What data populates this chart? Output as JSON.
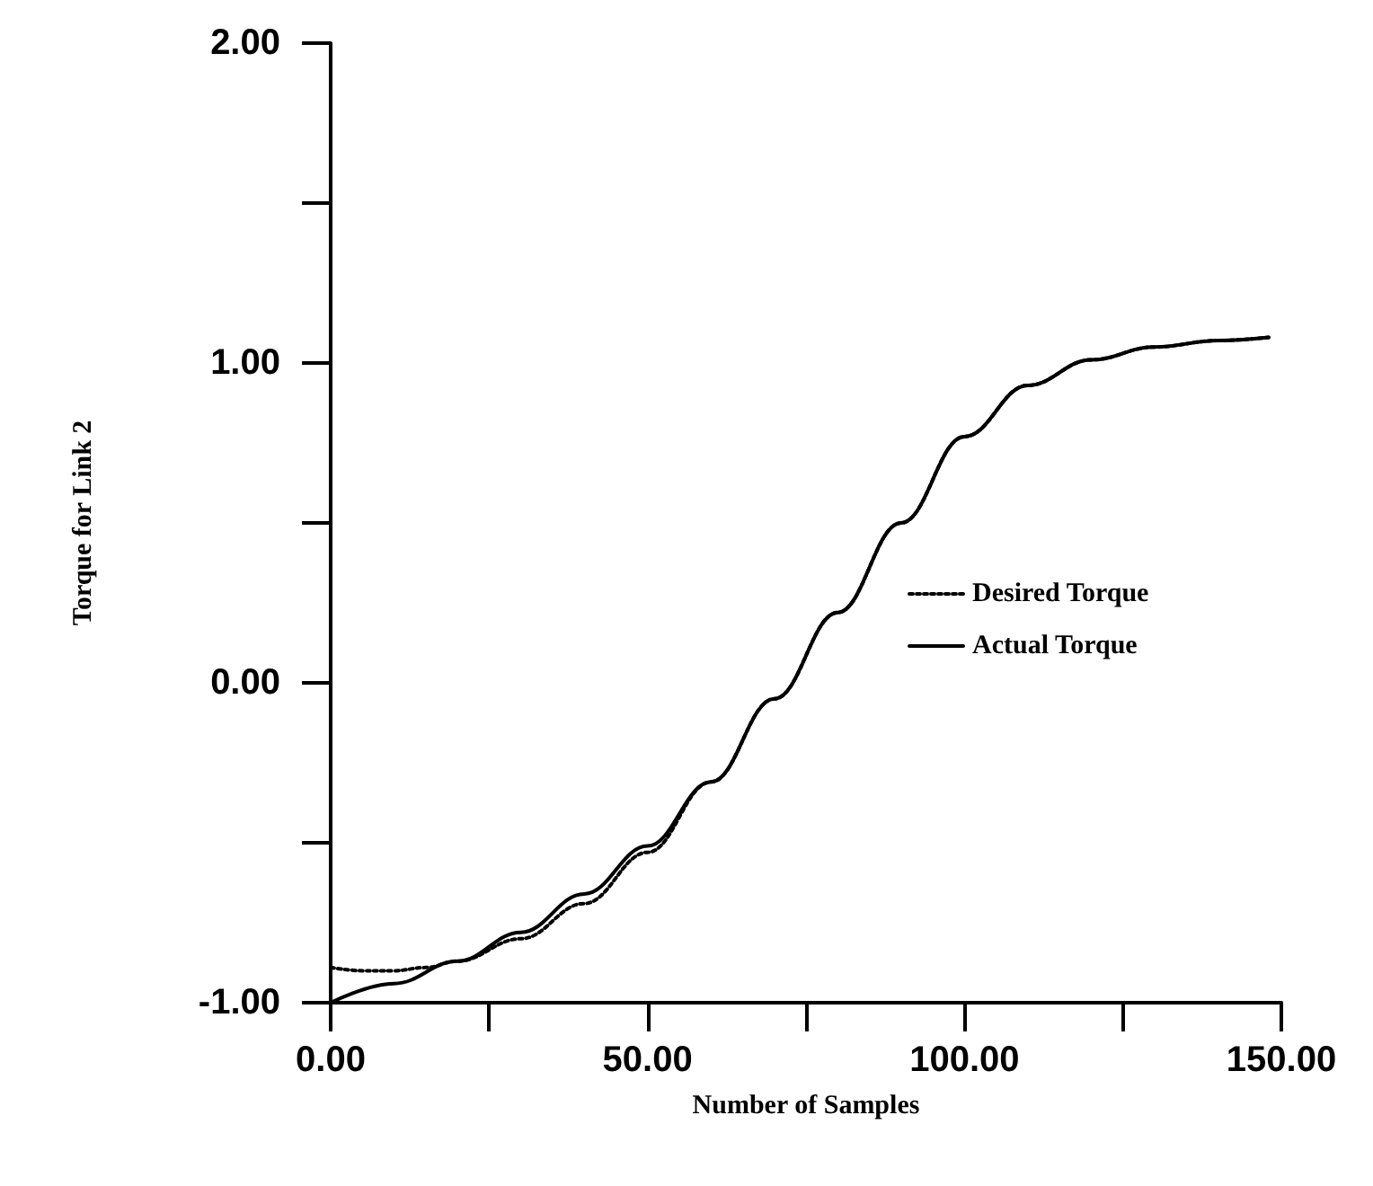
{
  "chart_data": {
    "type": "line",
    "xlabel": "Number of Samples",
    "ylabel": "Torque for Link 2",
    "xlim": [
      0,
      150
    ],
    "xticks": [
      {
        "value": 0,
        "label": "0.00"
      },
      {
        "value": 25,
        "label": null
      },
      {
        "value": 50,
        "label": "50.00"
      },
      {
        "value": 75,
        "label": null
      },
      {
        "value": 100,
        "label": "100.00"
      },
      {
        "value": 125,
        "label": null
      },
      {
        "value": 150,
        "label": "150.00"
      }
    ],
    "ylim": [
      -1,
      2
    ],
    "yticks": [
      {
        "value": -1,
        "label": "-1.00"
      },
      {
        "value": -0.5,
        "label": null
      },
      {
        "value": 0,
        "label": "0.00"
      },
      {
        "value": 0.5,
        "label": null
      },
      {
        "value": 1,
        "label": "1.00"
      },
      {
        "value": 1.5,
        "label": null
      },
      {
        "value": 2,
        "label": "2.00"
      }
    ],
    "grid": false,
    "legend": "center",
    "marker": "none",
    "series": [
      {
        "name": "Desired Torque",
        "color": "#000000",
        "line_style": "dotted",
        "x": [
          0,
          5,
          10,
          15,
          20,
          30,
          40,
          50,
          60,
          70,
          80,
          90,
          100,
          110,
          120,
          130,
          140,
          148
        ],
        "values": [
          -0.89,
          -0.9,
          -0.9,
          -0.89,
          -0.87,
          -0.8,
          -0.69,
          -0.53,
          -0.31,
          -0.05,
          0.22,
          0.5,
          0.77,
          0.93,
          1.01,
          1.05,
          1.07,
          1.08
        ]
      },
      {
        "name": "Actual Torque",
        "color": "#000000",
        "line_style": "solid",
        "x": [
          0,
          10,
          20,
          30,
          40,
          50,
          60,
          70,
          80,
          90,
          100,
          110,
          120,
          130,
          140,
          148
        ],
        "values": [
          -1.0,
          -0.94,
          -0.87,
          -0.78,
          -0.66,
          -0.51,
          -0.31,
          -0.05,
          0.22,
          0.5,
          0.77,
          0.93,
          1.01,
          1.05,
          1.07,
          1.08
        ]
      }
    ]
  }
}
